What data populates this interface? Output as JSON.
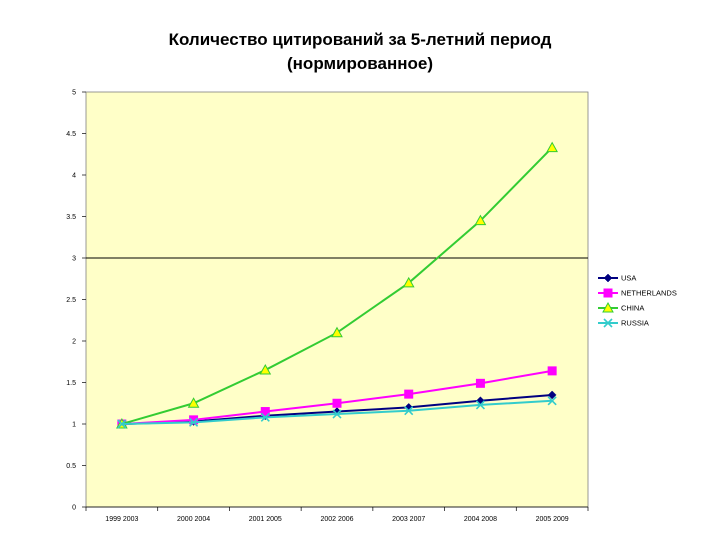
{
  "chart_data": {
    "type": "line",
    "title": "Количество цитирований за 5-летний период",
    "subtitle": "(нормированное)",
    "categories": [
      "1999 2003",
      "2000 2004",
      "2001 2005",
      "2002 2006",
      "2003 2007",
      "2004 2008",
      "2005 2009"
    ],
    "ylim": [
      0,
      5
    ],
    "yticks": [
      "0",
      "0.5",
      "1",
      "1.5",
      "2",
      "2.5",
      "3",
      "3.5",
      "4",
      "4.5",
      "5"
    ],
    "reference_line": 3,
    "legend_position": "right",
    "plot_background": "#ffffc8",
    "series": [
      {
        "name": "USA",
        "color": "#000080",
        "marker": "diamond",
        "values": [
          1.0,
          1.03,
          1.1,
          1.15,
          1.2,
          1.28,
          1.35
        ]
      },
      {
        "name": "NETHERLANDS",
        "color": "#ff00ff",
        "marker": "square",
        "values": [
          1.0,
          1.05,
          1.15,
          1.25,
          1.36,
          1.49,
          1.64
        ]
      },
      {
        "name": "CHINA",
        "color": "#33cc33",
        "marker": "triangle",
        "values": [
          1.0,
          1.25,
          1.65,
          2.1,
          2.7,
          3.45,
          4.33
        ]
      },
      {
        "name": "RUSSIA",
        "color": "#33cccc",
        "marker": "x",
        "values": [
          1.0,
          1.02,
          1.08,
          1.12,
          1.16,
          1.23,
          1.28
        ]
      }
    ]
  }
}
